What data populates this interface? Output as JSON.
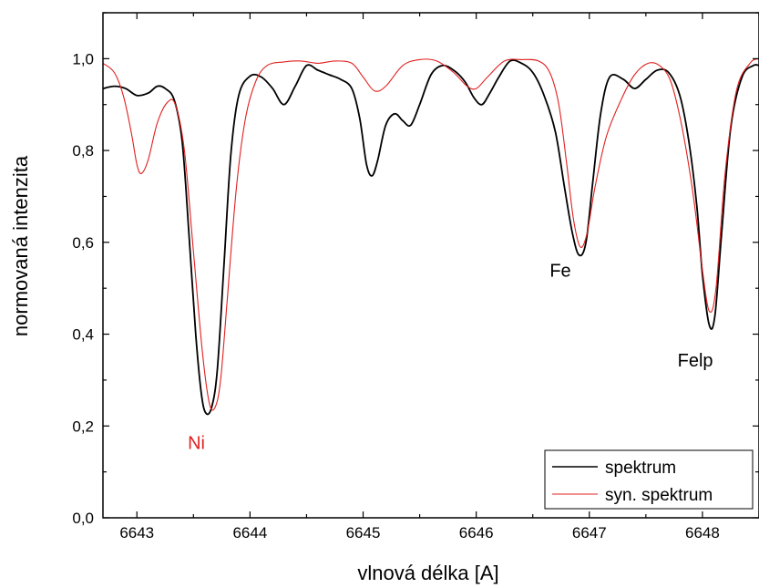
{
  "chart_data": {
    "type": "line",
    "title": "",
    "xlabel": "vlnová délka [A]",
    "ylabel": "normovaná intenzita",
    "xlim": [
      6642.7,
      6648.5
    ],
    "ylim": [
      0.0,
      1.1
    ],
    "x_ticks": [
      6643,
      6644,
      6645,
      6646,
      6647,
      6648
    ],
    "y_ticks": [
      0.0,
      0.2,
      0.4,
      0.6,
      0.8,
      1.0
    ],
    "y_tick_labels": [
      "0,0",
      "0,2",
      "0,4",
      "0,6",
      "0,8",
      "1,0"
    ],
    "grid": false,
    "legend_position": "bottom-right",
    "series": [
      {
        "name": "spektrum",
        "color": "#000000",
        "points": [
          [
            6642.7,
            0.935
          ],
          [
            6642.8,
            0.94
          ],
          [
            6642.9,
            0.935
          ],
          [
            6643.0,
            0.92
          ],
          [
            6643.1,
            0.925
          ],
          [
            6643.18,
            0.94
          ],
          [
            6643.25,
            0.935
          ],
          [
            6643.33,
            0.91
          ],
          [
            6643.4,
            0.82
          ],
          [
            6643.46,
            0.62
          ],
          [
            6643.52,
            0.4
          ],
          [
            6643.57,
            0.27
          ],
          [
            6643.61,
            0.228
          ],
          [
            6643.66,
            0.24
          ],
          [
            6643.71,
            0.32
          ],
          [
            6643.77,
            0.55
          ],
          [
            6643.83,
            0.79
          ],
          [
            6643.9,
            0.92
          ],
          [
            6644.0,
            0.962
          ],
          [
            6644.1,
            0.96
          ],
          [
            6644.2,
            0.935
          ],
          [
            6644.3,
            0.9
          ],
          [
            6644.4,
            0.94
          ],
          [
            6644.5,
            0.985
          ],
          [
            6644.6,
            0.975
          ],
          [
            6644.7,
            0.965
          ],
          [
            6644.8,
            0.955
          ],
          [
            6644.9,
            0.935
          ],
          [
            6644.97,
            0.87
          ],
          [
            6645.03,
            0.77
          ],
          [
            6645.08,
            0.745
          ],
          [
            6645.13,
            0.78
          ],
          [
            6645.2,
            0.855
          ],
          [
            6645.28,
            0.88
          ],
          [
            6645.35,
            0.865
          ],
          [
            6645.42,
            0.855
          ],
          [
            6645.5,
            0.9
          ],
          [
            6645.6,
            0.965
          ],
          [
            6645.7,
            0.985
          ],
          [
            6645.8,
            0.975
          ],
          [
            6645.9,
            0.95
          ],
          [
            6645.98,
            0.915
          ],
          [
            6646.05,
            0.9
          ],
          [
            6646.12,
            0.925
          ],
          [
            6646.2,
            0.96
          ],
          [
            6646.3,
            0.995
          ],
          [
            6646.4,
            0.99
          ],
          [
            6646.5,
            0.97
          ],
          [
            6646.6,
            0.92
          ],
          [
            6646.7,
            0.84
          ],
          [
            6646.78,
            0.72
          ],
          [
            6646.85,
            0.62
          ],
          [
            6646.91,
            0.572
          ],
          [
            6646.97,
            0.6
          ],
          [
            6647.03,
            0.73
          ],
          [
            6647.1,
            0.88
          ],
          [
            6647.18,
            0.96
          ],
          [
            6647.3,
            0.955
          ],
          [
            6647.4,
            0.935
          ],
          [
            6647.5,
            0.955
          ],
          [
            6647.6,
            0.975
          ],
          [
            6647.7,
            0.97
          ],
          [
            6647.8,
            0.92
          ],
          [
            6647.88,
            0.82
          ],
          [
            6647.95,
            0.68
          ],
          [
            6648.0,
            0.53
          ],
          [
            6648.06,
            0.42
          ],
          [
            6648.11,
            0.44
          ],
          [
            6648.17,
            0.62
          ],
          [
            6648.25,
            0.85
          ],
          [
            6648.35,
            0.96
          ],
          [
            6648.45,
            0.985
          ],
          [
            6648.5,
            0.985
          ]
        ]
      },
      {
        "name": "syn. spektrum",
        "color": "#e02020",
        "points": [
          [
            6642.7,
            0.99
          ],
          [
            6642.8,
            0.97
          ],
          [
            6642.88,
            0.92
          ],
          [
            6642.95,
            0.84
          ],
          [
            6643.0,
            0.77
          ],
          [
            6643.04,
            0.75
          ],
          [
            6643.1,
            0.78
          ],
          [
            6643.18,
            0.86
          ],
          [
            6643.27,
            0.905
          ],
          [
            6643.34,
            0.9
          ],
          [
            6643.42,
            0.8
          ],
          [
            6643.5,
            0.58
          ],
          [
            6643.58,
            0.36
          ],
          [
            6643.64,
            0.25
          ],
          [
            6643.69,
            0.24
          ],
          [
            6643.74,
            0.3
          ],
          [
            6643.8,
            0.48
          ],
          [
            6643.88,
            0.72
          ],
          [
            6643.96,
            0.87
          ],
          [
            6644.05,
            0.95
          ],
          [
            6644.15,
            0.985
          ],
          [
            6644.3,
            0.993
          ],
          [
            6644.45,
            0.995
          ],
          [
            6644.6,
            0.99
          ],
          [
            6644.75,
            0.995
          ],
          [
            6644.9,
            0.99
          ],
          [
            6645.0,
            0.96
          ],
          [
            6645.1,
            0.93
          ],
          [
            6645.2,
            0.94
          ],
          [
            6645.35,
            0.985
          ],
          [
            6645.5,
            0.998
          ],
          [
            6645.65,
            0.995
          ],
          [
            6645.8,
            0.97
          ],
          [
            6645.92,
            0.94
          ],
          [
            6646.0,
            0.935
          ],
          [
            6646.1,
            0.96
          ],
          [
            6646.25,
            0.995
          ],
          [
            6646.4,
            0.998
          ],
          [
            6646.55,
            0.995
          ],
          [
            6646.65,
            0.97
          ],
          [
            6646.73,
            0.9
          ],
          [
            6646.8,
            0.77
          ],
          [
            6646.86,
            0.65
          ],
          [
            6646.92,
            0.59
          ],
          [
            6646.98,
            0.62
          ],
          [
            6647.05,
            0.72
          ],
          [
            6647.15,
            0.83
          ],
          [
            6647.28,
            0.91
          ],
          [
            6647.4,
            0.965
          ],
          [
            6647.52,
            0.99
          ],
          [
            6647.62,
            0.985
          ],
          [
            6647.72,
            0.95
          ],
          [
            6647.82,
            0.85
          ],
          [
            6647.92,
            0.7
          ],
          [
            6648.0,
            0.54
          ],
          [
            6648.06,
            0.45
          ],
          [
            6648.12,
            0.5
          ],
          [
            6648.2,
            0.75
          ],
          [
            6648.3,
            0.93
          ],
          [
            6648.42,
            0.99
          ],
          [
            6648.5,
            1.0
          ]
        ]
      }
    ],
    "annotations": [
      {
        "text": "Ni",
        "x": 6643.45,
        "y": 0.15,
        "color": "#e02020"
      },
      {
        "text": "Fe",
        "x": 6646.65,
        "y": 0.525,
        "color": "#000000"
      },
      {
        "text": "Felp",
        "x": 6647.78,
        "y": 0.33,
        "color": "#000000"
      }
    ]
  }
}
